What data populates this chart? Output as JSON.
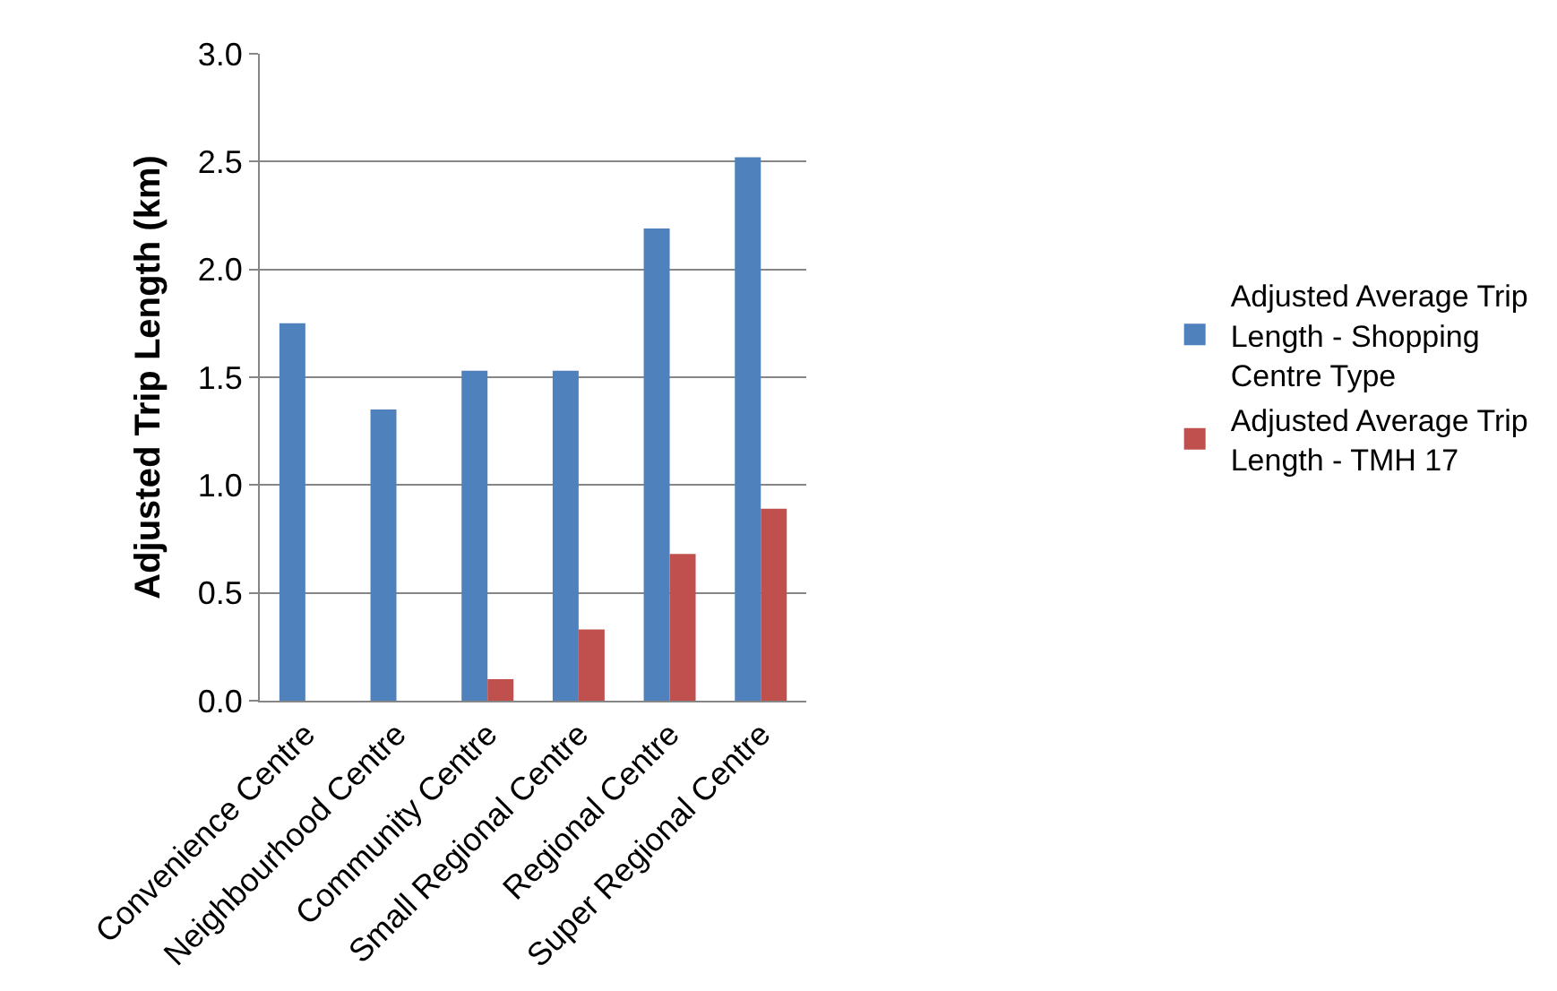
{
  "chart_data": {
    "type": "bar",
    "ylabel": "Adjusted Trip Length (km)",
    "categories": [
      "Convenience Centre",
      "Neighbourhood Centre",
      "Community Centre",
      "Small Regional Centre",
      "Regional Centre",
      "Super Regional Centre"
    ],
    "series": [
      {
        "name": "Adjusted Average Trip Length - Shopping Centre Type",
        "color": "#4f81bd",
        "values": [
          1.75,
          1.35,
          1.53,
          1.53,
          2.19,
          2.52
        ]
      },
      {
        "name": "Adjusted Average Trip Length - TMH 17",
        "color": "#c0504d",
        "values": [
          null,
          null,
          0.1,
          0.33,
          0.68,
          0.89
        ]
      }
    ],
    "ylim": [
      0,
      3.0
    ],
    "yticks": [
      {
        "value": 0,
        "label": "0.0"
      },
      0.5,
      {
        "value": 1,
        "label": "1.0"
      },
      1.5,
      {
        "value": 2,
        "label": "2.0"
      },
      2.5,
      {
        "value": 3,
        "label": "3.0"
      }
    ],
    "grid": "y",
    "legend": "right"
  }
}
